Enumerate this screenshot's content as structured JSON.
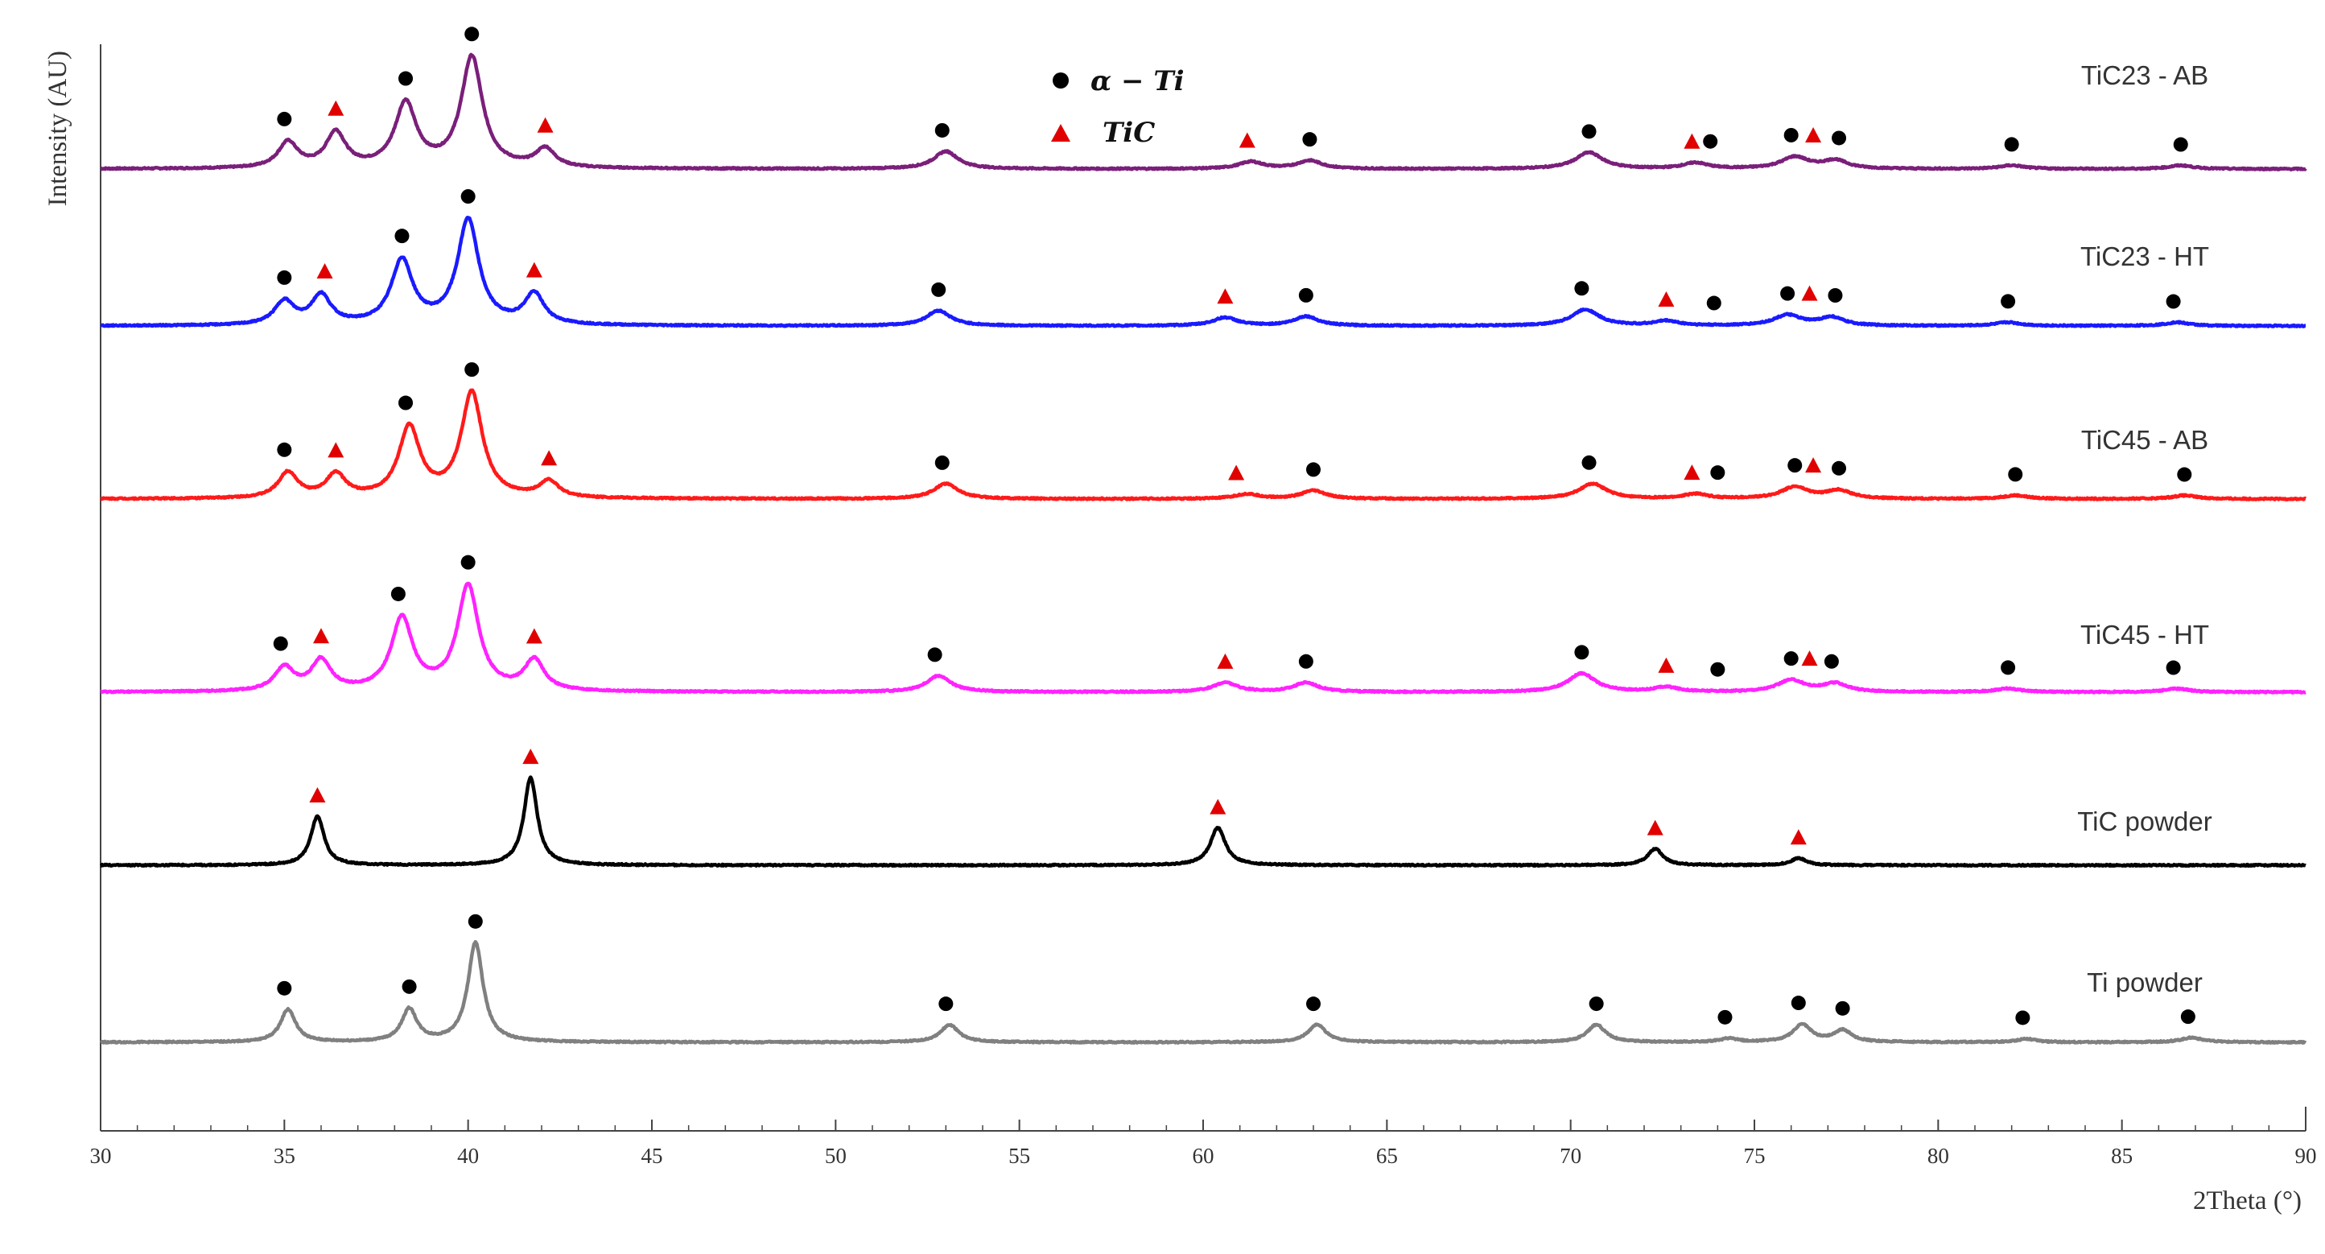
{
  "chart_data": {
    "type": "line",
    "title": "",
    "xlabel": "2Theta (°)",
    "ylabel": "Intensity (AU)",
    "xlim": [
      30,
      90
    ],
    "xticks": [
      30,
      35,
      40,
      45,
      50,
      55,
      60,
      65,
      70,
      75,
      80,
      85,
      90
    ],
    "grid": false,
    "legend": {
      "position": "top-center",
      "entries": [
        {
          "label": "α − Ti",
          "marker": "circle",
          "color": "#000000"
        },
        {
          "label": "TiC",
          "marker": "triangle",
          "color": "#e00000"
        }
      ]
    },
    "series": [
      {
        "name": "TiC23 - AB",
        "color": "#7a1f7a",
        "peaks": [
          {
            "x": 35.1,
            "h": 0.22,
            "w": 0.32
          },
          {
            "x": 36.4,
            "h": 0.3,
            "w": 0.32
          },
          {
            "x": 38.3,
            "h": 0.55,
            "w": 0.35
          },
          {
            "x": 40.1,
            "h": 0.95,
            "w": 0.35
          },
          {
            "x": 42.1,
            "h": 0.16,
            "w": 0.32
          },
          {
            "x": 53.0,
            "h": 0.15,
            "w": 0.4
          },
          {
            "x": 61.3,
            "h": 0.06,
            "w": 0.4
          },
          {
            "x": 62.9,
            "h": 0.07,
            "w": 0.4
          },
          {
            "x": 70.5,
            "h": 0.14,
            "w": 0.45
          },
          {
            "x": 73.4,
            "h": 0.05,
            "w": 0.4
          },
          {
            "x": 76.1,
            "h": 0.1,
            "w": 0.45
          },
          {
            "x": 77.2,
            "h": 0.07,
            "w": 0.4
          },
          {
            "x": 82.0,
            "h": 0.03,
            "w": 0.4
          },
          {
            "x": 86.6,
            "h": 0.03,
            "w": 0.4
          }
        ],
        "alpha_ti": [
          35.0,
          38.3,
          40.1,
          52.9,
          62.9,
          70.5,
          73.8,
          76.0,
          77.3,
          82.0,
          86.6
        ],
        "tic": [
          36.4,
          42.1,
          61.2,
          73.3,
          76.6
        ]
      },
      {
        "name": "TiC23 - HT",
        "color": "#1a1aff",
        "peaks": [
          {
            "x": 35.0,
            "h": 0.2,
            "w": 0.32
          },
          {
            "x": 36.0,
            "h": 0.25,
            "w": 0.32
          },
          {
            "x": 38.2,
            "h": 0.55,
            "w": 0.35
          },
          {
            "x": 40.0,
            "h": 0.9,
            "w": 0.35
          },
          {
            "x": 41.8,
            "h": 0.26,
            "w": 0.32
          },
          {
            "x": 52.8,
            "h": 0.13,
            "w": 0.4
          },
          {
            "x": 60.6,
            "h": 0.07,
            "w": 0.4
          },
          {
            "x": 62.8,
            "h": 0.08,
            "w": 0.4
          },
          {
            "x": 70.4,
            "h": 0.14,
            "w": 0.45
          },
          {
            "x": 72.6,
            "h": 0.04,
            "w": 0.4
          },
          {
            "x": 75.9,
            "h": 0.09,
            "w": 0.45
          },
          {
            "x": 77.1,
            "h": 0.07,
            "w": 0.4
          },
          {
            "x": 81.9,
            "h": 0.03,
            "w": 0.4
          },
          {
            "x": 86.5,
            "h": 0.03,
            "w": 0.4
          }
        ],
        "alpha_ti": [
          35.0,
          38.2,
          40.0,
          52.8,
          62.8,
          70.3,
          73.9,
          75.9,
          77.2,
          81.9,
          86.4
        ],
        "tic": [
          36.1,
          41.8,
          60.6,
          72.6,
          76.5
        ]
      },
      {
        "name": "TiC45 - AB",
        "color": "#ff1a1a",
        "peaks": [
          {
            "x": 35.1,
            "h": 0.22,
            "w": 0.32
          },
          {
            "x": 36.4,
            "h": 0.2,
            "w": 0.32
          },
          {
            "x": 38.4,
            "h": 0.6,
            "w": 0.35
          },
          {
            "x": 40.1,
            "h": 0.9,
            "w": 0.35
          },
          {
            "x": 42.2,
            "h": 0.14,
            "w": 0.32
          },
          {
            "x": 53.0,
            "h": 0.13,
            "w": 0.4
          },
          {
            "x": 61.2,
            "h": 0.04,
            "w": 0.4
          },
          {
            "x": 63.0,
            "h": 0.07,
            "w": 0.4
          },
          {
            "x": 70.6,
            "h": 0.13,
            "w": 0.45
          },
          {
            "x": 73.4,
            "h": 0.04,
            "w": 0.4
          },
          {
            "x": 76.1,
            "h": 0.1,
            "w": 0.45
          },
          {
            "x": 77.3,
            "h": 0.07,
            "w": 0.4
          },
          {
            "x": 82.1,
            "h": 0.03,
            "w": 0.4
          },
          {
            "x": 86.7,
            "h": 0.03,
            "w": 0.4
          }
        ],
        "alpha_ti": [
          35.0,
          38.3,
          40.1,
          52.9,
          63.0,
          70.5,
          74.0,
          76.1,
          77.3,
          82.1,
          86.7
        ],
        "tic": [
          36.4,
          42.2,
          60.9,
          73.3,
          76.6
        ]
      },
      {
        "name": "TiC45 - HT",
        "color": "#ff22ff",
        "peaks": [
          {
            "x": 35.0,
            "h": 0.2,
            "w": 0.32
          },
          {
            "x": 36.0,
            "h": 0.26,
            "w": 0.32
          },
          {
            "x": 38.2,
            "h": 0.62,
            "w": 0.35
          },
          {
            "x": 40.0,
            "h": 0.9,
            "w": 0.35
          },
          {
            "x": 41.8,
            "h": 0.26,
            "w": 0.32
          },
          {
            "x": 52.8,
            "h": 0.14,
            "w": 0.4
          },
          {
            "x": 60.6,
            "h": 0.08,
            "w": 0.4
          },
          {
            "x": 62.8,
            "h": 0.08,
            "w": 0.4
          },
          {
            "x": 70.3,
            "h": 0.16,
            "w": 0.45
          },
          {
            "x": 72.6,
            "h": 0.04,
            "w": 0.4
          },
          {
            "x": 76.0,
            "h": 0.1,
            "w": 0.45
          },
          {
            "x": 77.2,
            "h": 0.07,
            "w": 0.4
          },
          {
            "x": 81.9,
            "h": 0.03,
            "w": 0.4
          },
          {
            "x": 86.5,
            "h": 0.03,
            "w": 0.4
          }
        ],
        "alpha_ti": [
          34.9,
          38.1,
          40.0,
          52.7,
          62.8,
          70.3,
          74.0,
          76.0,
          77.1,
          81.9,
          86.4
        ],
        "tic": [
          36.0,
          41.8,
          60.6,
          72.6,
          76.5
        ]
      },
      {
        "name": "TiC powder",
        "color": "#000000",
        "peaks": [
          {
            "x": 35.9,
            "h": 0.42,
            "w": 0.22
          },
          {
            "x": 41.7,
            "h": 0.75,
            "w": 0.22
          },
          {
            "x": 60.4,
            "h": 0.32,
            "w": 0.25
          },
          {
            "x": 72.3,
            "h": 0.14,
            "w": 0.25
          },
          {
            "x": 76.2,
            "h": 0.06,
            "w": 0.25
          }
        ],
        "alpha_ti": [],
        "tic": [
          35.9,
          41.7,
          60.4,
          72.3,
          76.2
        ]
      },
      {
        "name": "Ti powder",
        "color": "#808080",
        "peaks": [
          {
            "x": 35.1,
            "h": 0.28,
            "w": 0.25
          },
          {
            "x": 38.4,
            "h": 0.28,
            "w": 0.25
          },
          {
            "x": 40.2,
            "h": 0.85,
            "w": 0.25
          },
          {
            "x": 53.1,
            "h": 0.15,
            "w": 0.3
          },
          {
            "x": 63.1,
            "h": 0.15,
            "w": 0.3
          },
          {
            "x": 70.7,
            "h": 0.15,
            "w": 0.3
          },
          {
            "x": 74.3,
            "h": 0.03,
            "w": 0.3
          },
          {
            "x": 76.3,
            "h": 0.15,
            "w": 0.3
          },
          {
            "x": 77.4,
            "h": 0.1,
            "w": 0.3
          },
          {
            "x": 82.4,
            "h": 0.03,
            "w": 0.3
          },
          {
            "x": 86.9,
            "h": 0.04,
            "w": 0.35
          }
        ],
        "alpha_ti": [
          35.0,
          38.4,
          40.2,
          53.0,
          63.0,
          70.7,
          74.2,
          76.2,
          77.4,
          82.3,
          86.8
        ],
        "tic": []
      }
    ]
  }
}
